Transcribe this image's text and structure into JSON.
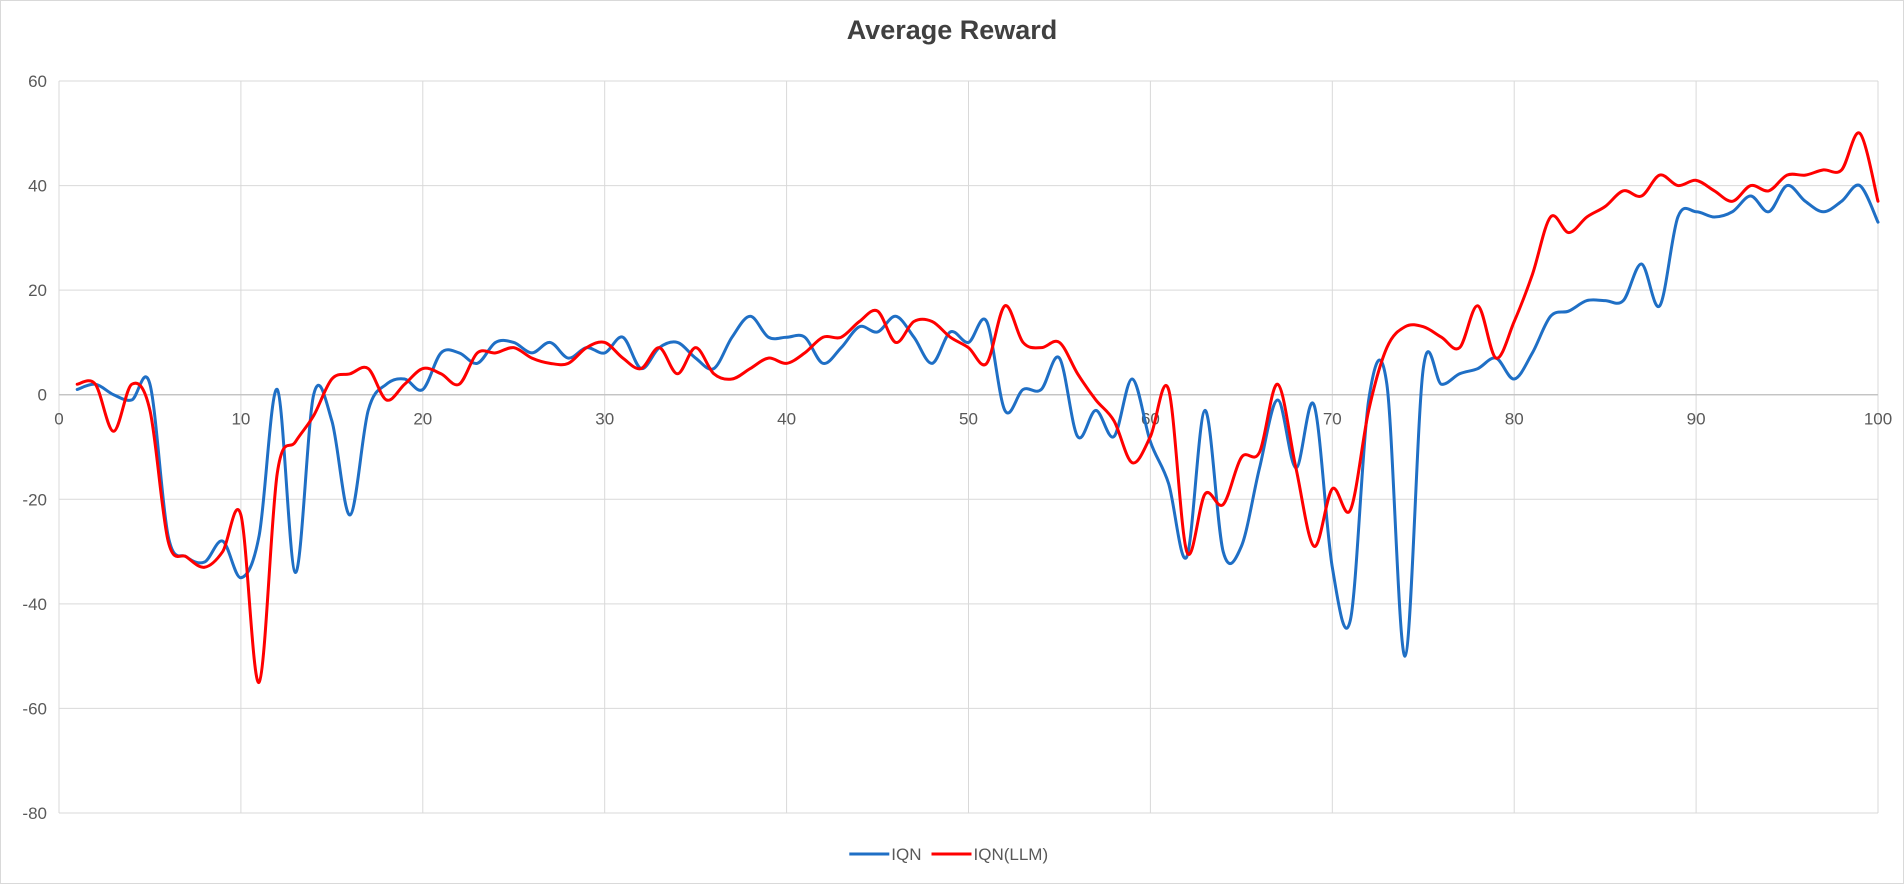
{
  "chart_data": {
    "type": "line",
    "title": "Average Reward",
    "xlabel": "",
    "ylabel": "",
    "xlim": [
      0,
      100
    ],
    "ylim": [
      -80,
      60
    ],
    "x_ticks": [
      0,
      10,
      20,
      30,
      40,
      50,
      60,
      70,
      80,
      90,
      100
    ],
    "y_ticks": [
      60,
      40,
      20,
      0,
      -20,
      -40,
      -60,
      -80
    ],
    "grid": true,
    "legend_position": "bottom",
    "series": [
      {
        "name": "IQN",
        "color": "#1f6fc5",
        "x": [
          1,
          2,
          3,
          4,
          5,
          6,
          7,
          8,
          9,
          10,
          11,
          12,
          13,
          14,
          15,
          16,
          17,
          18,
          19,
          20,
          21,
          22,
          23,
          24,
          25,
          26,
          27,
          28,
          29,
          30,
          31,
          32,
          33,
          34,
          35,
          36,
          37,
          38,
          39,
          40,
          41,
          42,
          43,
          44,
          45,
          46,
          47,
          48,
          49,
          50,
          51,
          52,
          53,
          54,
          55,
          56,
          57,
          58,
          59,
          60,
          61,
          62,
          63,
          64,
          65,
          66,
          67,
          68,
          69,
          70,
          71,
          72,
          73,
          74,
          75,
          76,
          77,
          78,
          79,
          80,
          81,
          82,
          83,
          84,
          85,
          86,
          87,
          88,
          89,
          90,
          91,
          92,
          93,
          94,
          95,
          96,
          97,
          98,
          99,
          100
        ],
        "y": [
          1,
          2,
          0,
          -1,
          2,
          -27,
          -31,
          -32,
          -28,
          -35,
          -27,
          1,
          -34,
          0,
          -5,
          -23,
          -3,
          2,
          3,
          1,
          8,
          8,
          6,
          10,
          10,
          8,
          10,
          7,
          9,
          8,
          11,
          5,
          9,
          10,
          7,
          5,
          11,
          15,
          11,
          11,
          11,
          6,
          9,
          13,
          12,
          15,
          11,
          6,
          12,
          10,
          14,
          -3,
          1,
          1,
          7,
          -8,
          -3,
          -8,
          3,
          -9,
          -17,
          -31,
          -3,
          -30,
          -29,
          -14,
          -1,
          -14,
          -2,
          -33,
          -43,
          -1,
          2,
          -50,
          5,
          2,
          4,
          5,
          7,
          3,
          8,
          15,
          16,
          18,
          18,
          18,
          25,
          17,
          34,
          35,
          34,
          35,
          38,
          35,
          40,
          37,
          35,
          37,
          40,
          33
        ]
      },
      {
        "name": "IQN(LLM)",
        "color": "#ff0000",
        "x": [
          1,
          2,
          3,
          4,
          5,
          6,
          7,
          8,
          9,
          10,
          11,
          12,
          13,
          14,
          15,
          16,
          17,
          18,
          19,
          20,
          21,
          22,
          23,
          24,
          25,
          26,
          27,
          28,
          29,
          30,
          31,
          32,
          33,
          34,
          35,
          36,
          37,
          38,
          39,
          40,
          41,
          42,
          43,
          44,
          45,
          46,
          47,
          48,
          49,
          50,
          51,
          52,
          53,
          54,
          55,
          56,
          57,
          58,
          59,
          60,
          61,
          62,
          63,
          64,
          65,
          66,
          67,
          68,
          69,
          70,
          71,
          72,
          73,
          74,
          75,
          76,
          77,
          78,
          79,
          80,
          81,
          82,
          83,
          84,
          85,
          86,
          87,
          88,
          89,
          90,
          91,
          92,
          93,
          94,
          95,
          96,
          97,
          98,
          99,
          100
        ],
        "y": [
          2,
          2,
          -7,
          2,
          -3,
          -28,
          -31,
          -33,
          -30,
          -23,
          -55,
          -15,
          -9,
          -4,
          3,
          4,
          5,
          -1,
          2,
          5,
          4,
          2,
          8,
          8,
          9,
          7,
          6,
          6,
          9,
          10,
          7,
          5,
          9,
          4,
          9,
          4,
          3,
          5,
          7,
          6,
          8,
          11,
          11,
          14,
          16,
          10,
          14,
          14,
          11,
          9,
          6,
          17,
          10,
          9,
          10,
          4,
          -1,
          -5,
          -13,
          -8,
          1,
          -30,
          -19,
          -21,
          -12,
          -11,
          2,
          -14,
          -29,
          -18,
          -22,
          -3,
          9,
          13,
          13,
          11,
          9,
          17,
          7,
          14,
          23,
          34,
          31,
          34,
          36,
          39,
          38,
          42,
          40,
          41,
          39,
          37,
          40,
          39,
          42,
          42,
          43,
          43,
          50,
          37
        ]
      }
    ]
  }
}
